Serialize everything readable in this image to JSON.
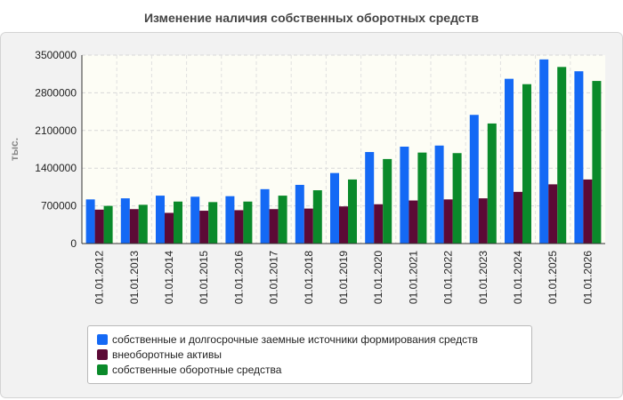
{
  "chart_data": {
    "type": "bar",
    "title": "Изменение наличия собственных оборотных средств",
    "ylabel": "тыс.",
    "xlabel": "",
    "ylim": [
      0,
      3500000
    ],
    "yticks": [
      "0",
      "700000",
      "1400000",
      "2100000",
      "2800000",
      "3500000"
    ],
    "grid": true,
    "legend_position": "bottom",
    "categories": [
      "01.01.2012",
      "01.01.2013",
      "01.01.2014",
      "01.01.2015",
      "01.01.2016",
      "01.01.2017",
      "01.01.2018",
      "01.01.2019",
      "01.01.2020",
      "01.01.2021",
      "01.01.2022",
      "01.01.2023",
      "01.01.2024",
      "01.01.2025",
      "01.01.2026"
    ],
    "series": [
      {
        "name": "собственные и долгосрочные заемные источники формирования средств",
        "color": "#1469f5",
        "values": [
          820000,
          840000,
          890000,
          870000,
          880000,
          1010000,
          1090000,
          1310000,
          1700000,
          1800000,
          1820000,
          2390000,
          3060000,
          3420000,
          3200000
        ]
      },
      {
        "name": "внеоборотные активы",
        "color": "#5c0a36",
        "values": [
          630000,
          640000,
          570000,
          610000,
          620000,
          640000,
          650000,
          690000,
          730000,
          800000,
          820000,
          840000,
          960000,
          1100000,
          1190000
        ]
      },
      {
        "name": "собственные оборотные средства",
        "color": "#0a8a2a",
        "values": [
          700000,
          720000,
          780000,
          770000,
          780000,
          890000,
          990000,
          1190000,
          1570000,
          1690000,
          1680000,
          2230000,
          2960000,
          3280000,
          3020000
        ]
      }
    ]
  }
}
